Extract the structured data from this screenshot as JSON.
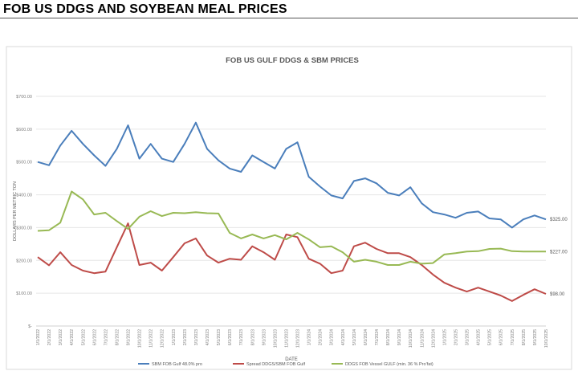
{
  "page": {
    "title": "FOB US DDGS AND SOYBEAN MEAL PRICES"
  },
  "chart_data": {
    "type": "line",
    "title": "FOB US GULF DDGS & SBM PRICES",
    "xlabel": "DATE",
    "ylabel": "DOLLARS PER METRIC TON",
    "ylim": [
      0,
      700
    ],
    "yticks": [
      0,
      100,
      200,
      300,
      400,
      500,
      600,
      700
    ],
    "ytick_labels": [
      "$-",
      "$100.00",
      "$200.00",
      "$300.00",
      "$400.00",
      "$500.00",
      "$600.00",
      "$700.00"
    ],
    "grid": true,
    "legend_position": "bottom",
    "categories": [
      "1/1/2022",
      "2/1/2022",
      "3/1/2022",
      "4/1/2022",
      "5/1/2022",
      "6/1/2022",
      "7/1/2022",
      "8/1/2022",
      "9/1/2022",
      "10/1/2022",
      "11/1/2022",
      "12/1/2022",
      "1/1/2023",
      "2/1/2023",
      "3/1/2023",
      "4/1/2023",
      "5/1/2023",
      "6/1/2023",
      "7/1/2023",
      "8/1/2023",
      "9/1/2023",
      "10/1/2023",
      "11/1/2023",
      "12/1/2023",
      "1/1/2024",
      "2/1/2024",
      "3/1/2024",
      "4/1/2024",
      "5/1/2024",
      "6/1/2024",
      "7/1/2024",
      "8/1/2024",
      "9/1/2024",
      "10/1/2024",
      "11/1/2024",
      "12/1/2024",
      "1/1/2025",
      "2/1/2025",
      "3/1/2025",
      "4/1/2025",
      "5/1/2025",
      "6/1/2025",
      "7/1/2025",
      "8/1/2025",
      "9/1/2025",
      "10/1/2025"
    ],
    "series": [
      {
        "name": "SBM FOB Gulf 48.0% pro",
        "color": "#4a7ebb",
        "end_label": "$325.00",
        "values": [
          500,
          490,
          550,
          595,
          555,
          520,
          488,
          540,
          612,
          510,
          555,
          510,
          500,
          555,
          620,
          540,
          505,
          480,
          470,
          520,
          500,
          480,
          540,
          560,
          455,
          425,
          398,
          389,
          442,
          450,
          435,
          406,
          398,
          423,
          374,
          347,
          340,
          330,
          345,
          349,
          328,
          325,
          300,
          325,
          337,
          325
        ]
      },
      {
        "name": "Spread DDGS/SBM FOB Gulf",
        "color": "#be4b48",
        "end_label": "$98.00",
        "values": [
          210,
          185,
          225,
          186,
          169,
          161,
          166,
          240,
          313,
          186,
          193,
          169,
          210,
          252,
          267,
          215,
          193,
          205,
          202,
          243,
          225,
          202,
          279,
          271,
          205,
          190,
          161,
          169,
          243,
          254,
          235,
          222,
          222,
          210,
          186,
          157,
          132,
          117,
          105,
          117,
          105,
          93,
          76,
          95,
          112,
          98
        ]
      },
      {
        "name": "DDGS FOB Vessel GULF  (min. 36 % Pro’fat)",
        "color": "#98b954",
        "end_label": "$227.00",
        "values": [
          290,
          292,
          315,
          410,
          386,
          340,
          345,
          320,
          296,
          333,
          350,
          335,
          345,
          344,
          347,
          344,
          343,
          284,
          267,
          279,
          267,
          277,
          264,
          284,
          264,
          240,
          243,
          225,
          196,
          202,
          196,
          186,
          186,
          196,
          190,
          192,
          218,
          222,
          227,
          228,
          235,
          236,
          228,
          227,
          227,
          227
        ]
      }
    ]
  }
}
